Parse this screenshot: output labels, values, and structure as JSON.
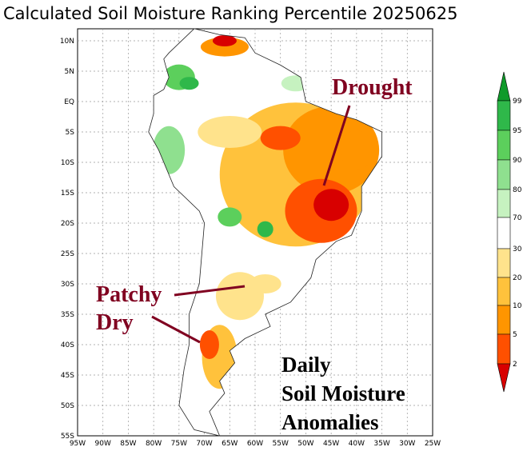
{
  "title": "Calculated Soil Moisture Ranking Percentile 20250625",
  "lat_labels": [
    "10N",
    "5N",
    "EQ",
    "5S",
    "10S",
    "15S",
    "20S",
    "25S",
    "30S",
    "35S",
    "40S",
    "45S",
    "50S",
    "55S"
  ],
  "lon_labels": [
    "95W",
    "90W",
    "85W",
    "80W",
    "75W",
    "70W",
    "65W",
    "60W",
    "55W",
    "50W",
    "45W",
    "40W",
    "35W",
    "30W",
    "25W"
  ],
  "colorbar": {
    "labels": [
      99,
      95,
      90,
      80,
      70,
      30,
      20,
      10,
      5,
      2
    ],
    "colors": [
      "#0f9a2a",
      "#2fb84a",
      "#5ccf5c",
      "#8fe08f",
      "#c6f2c0",
      "#ffffff",
      "#ffe38c",
      "#ffc23c",
      "#ff9500",
      "#ff5000",
      "#d80000"
    ]
  },
  "annotations": {
    "drought": "Drought",
    "patchy": "Patchy",
    "dry": "Dry"
  },
  "caption": [
    "Daily",
    "Soil Moisture",
    "Anomalies"
  ]
}
